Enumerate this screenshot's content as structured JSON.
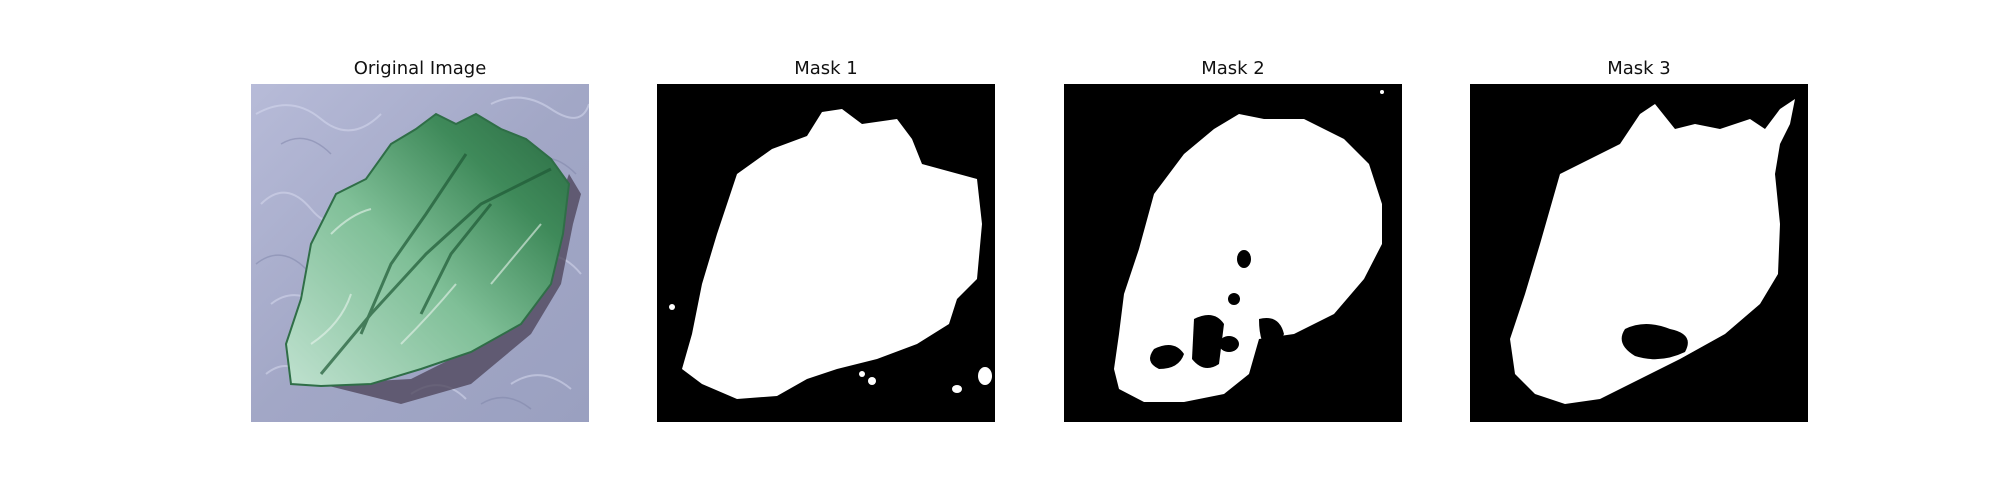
{
  "panels": [
    {
      "title": "Original Image",
      "kind": "photo"
    },
    {
      "title": "Mask 1",
      "kind": "mask"
    },
    {
      "title": "Mask 2",
      "kind": "mask"
    },
    {
      "title": "Mask 3",
      "kind": "mask"
    }
  ],
  "colors": {
    "background": "#ffffff",
    "mask_background": "#000000",
    "mask_foreground": "#ffffff",
    "photo_background": "#a9adcb",
    "leaf_green": "#4e9a6a",
    "leaf_dark": "#24623f",
    "leaf_light": "#cfe6d8"
  }
}
